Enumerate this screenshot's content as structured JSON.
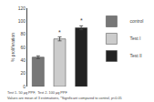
{
  "chart_data": {
    "type": "bar",
    "categories": [
      "control",
      "Test I",
      "Test II"
    ],
    "values": [
      45,
      73,
      90
    ],
    "errors": [
      2,
      3,
      3
    ],
    "colors": [
      "#777777",
      "#cccccc",
      "#222222"
    ],
    "ylabel": "% proliferation",
    "ylim": [
      0,
      120
    ],
    "yticks": [
      0,
      20,
      40,
      60,
      80,
      100,
      120
    ],
    "grid": false,
    "legend": "right",
    "tick_labels": "y",
    "annotations": [
      {
        "x": "Test I",
        "text": "*"
      },
      {
        "x": "Test II",
        "text": "*"
      },
      {
        "text": "Test 1- 50 μg PPF,  Test 2- 100 μg PPF"
      },
      {
        "text": "Values are mean of 3 estimations, *Significant compared to control, p<0.05"
      }
    ]
  }
}
